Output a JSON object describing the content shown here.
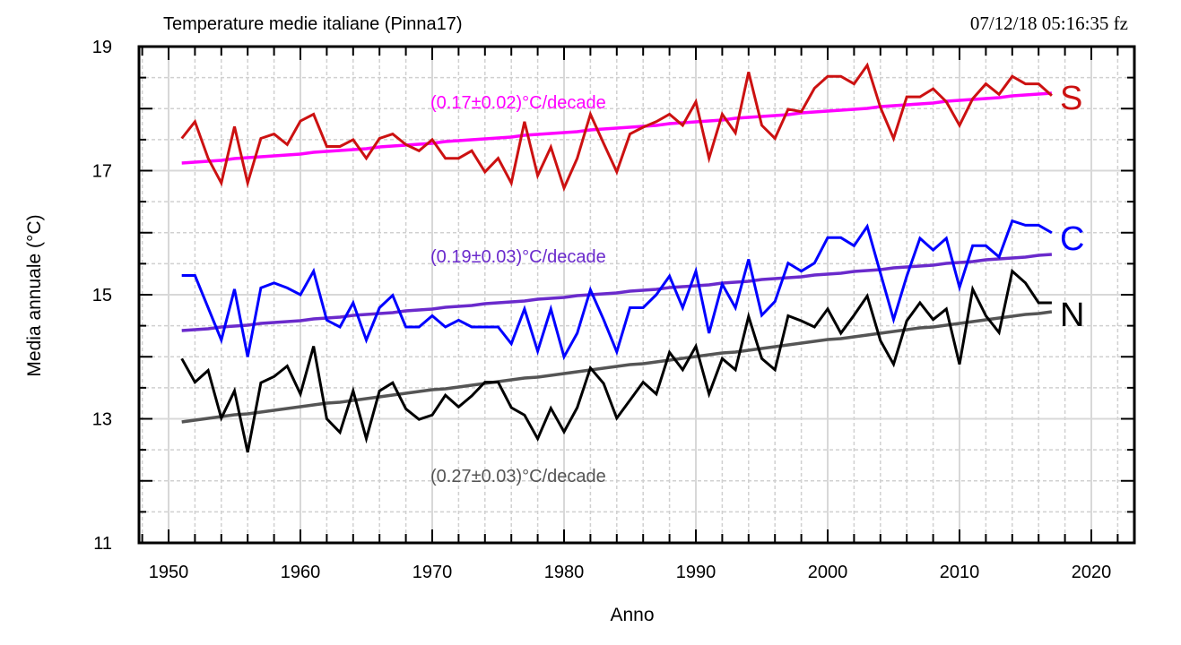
{
  "chart_data": {
    "type": "line",
    "title": "Temperature medie italiane (Pinna17)",
    "timestamp": "07/12/18  05:16:35 fz",
    "xlabel": "Anno",
    "ylabel": "Media annuale (°C)",
    "xlim": [
      1947.8,
      2022.8
    ],
    "ylim": [
      11,
      19
    ],
    "x_ticks": [
      "1950",
      "1960",
      "1970",
      "1980",
      "1990",
      "2000",
      "2010",
      "2020"
    ],
    "y_ticks": [
      "11",
      "13",
      "15",
      "17",
      "19"
    ],
    "grid": true,
    "x_start": 1951,
    "series": [
      {
        "name": "S",
        "color": "#cc1111",
        "values": [
          17.52,
          17.79,
          17.2,
          16.8,
          17.71,
          16.8,
          17.52,
          17.59,
          17.42,
          17.8,
          17.91,
          17.39,
          17.39,
          17.5,
          17.2,
          17.52,
          17.59,
          17.42,
          17.32,
          17.5,
          17.2,
          17.2,
          17.32,
          16.98,
          17.2,
          16.8,
          17.79,
          16.92,
          17.38,
          16.72,
          17.2,
          17.91,
          17.44,
          16.98,
          17.59,
          17.7,
          17.79,
          17.91,
          17.73,
          18.11,
          17.2,
          17.91,
          17.61,
          18.59,
          17.73,
          17.52,
          17.99,
          17.95,
          18.33,
          18.52,
          18.52,
          18.4,
          18.7,
          18.02,
          17.52,
          18.19,
          18.19,
          18.32,
          18.11,
          17.73,
          18.16,
          18.4,
          18.23,
          18.52,
          18.4,
          18.4,
          18.21
        ],
        "trend": {
          "label": "(0.17±0.02)°C/decade",
          "color": "#ff00ff",
          "start": 17.12,
          "end": 18.25
        }
      },
      {
        "name": "C",
        "color": "#0000ff",
        "values": [
          15.31,
          15.31,
          14.79,
          14.27,
          15.09,
          14.0,
          15.11,
          15.19,
          15.11,
          15.0,
          15.38,
          14.59,
          14.48,
          14.87,
          14.27,
          14.79,
          14.99,
          14.48,
          14.48,
          14.66,
          14.48,
          14.59,
          14.48,
          14.48,
          14.48,
          14.21,
          14.77,
          14.09,
          14.77,
          14.0,
          14.38,
          15.08,
          14.6,
          14.08,
          14.79,
          14.79,
          15.0,
          15.3,
          14.79,
          15.38,
          14.38,
          15.17,
          14.79,
          15.57,
          14.67,
          14.89,
          15.51,
          15.38,
          15.51,
          15.92,
          15.92,
          15.79,
          16.1,
          15.35,
          14.6,
          15.3,
          15.91,
          15.72,
          15.91,
          15.12,
          15.79,
          15.79,
          15.61,
          16.19,
          16.12,
          16.12,
          16.0
        ],
        "trend": {
          "label": "(0.19±0.03)°C/decade",
          "color": "#6a2acc",
          "start": 14.42,
          "end": 15.65
        }
      },
      {
        "name": "N",
        "color": "#000000",
        "values": [
          13.97,
          13.59,
          13.78,
          13.01,
          13.45,
          12.46,
          13.58,
          13.68,
          13.85,
          13.4,
          14.17,
          13.0,
          12.78,
          13.45,
          12.68,
          13.45,
          13.58,
          13.16,
          12.99,
          13.06,
          13.38,
          13.19,
          13.37,
          13.59,
          13.59,
          13.18,
          13.06,
          12.68,
          13.17,
          12.79,
          13.18,
          13.82,
          13.57,
          13.01,
          13.3,
          13.59,
          13.4,
          14.07,
          13.79,
          14.17,
          13.4,
          13.97,
          13.79,
          14.65,
          13.97,
          13.79,
          14.66,
          14.58,
          14.48,
          14.77,
          14.38,
          14.67,
          14.98,
          14.26,
          13.88,
          14.58,
          14.87,
          14.6,
          14.77,
          13.88,
          15.09,
          14.66,
          14.39,
          15.38,
          15.19,
          14.87,
          14.87
        ],
        "trend": {
          "label": "(0.27±0.03)°C/decade",
          "color": "#555555",
          "start": 12.95,
          "end": 14.73
        }
      }
    ]
  }
}
